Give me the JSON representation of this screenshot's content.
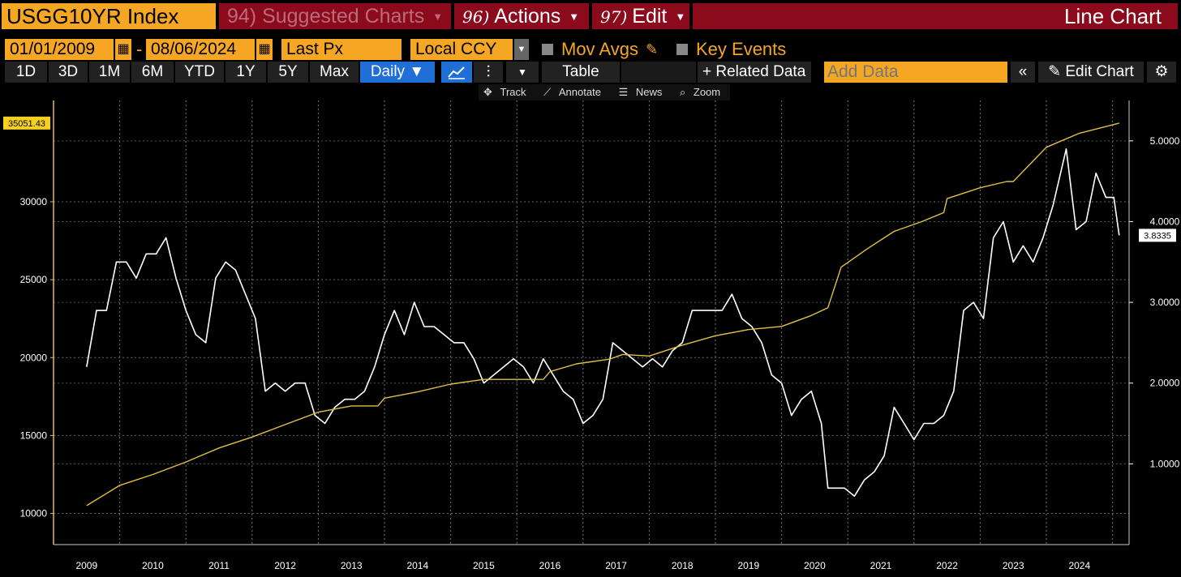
{
  "header": {
    "ticker": "USGG10YR Index",
    "suggested": "94) Suggested Charts",
    "actions_num": "96)",
    "actions": "Actions",
    "edit_num": "97)",
    "edit": "Edit",
    "title": "Line Chart"
  },
  "controls": {
    "start_date": "01/01/2009",
    "end_date": "08/06/2024",
    "date_sep": "-",
    "field": "Last Px",
    "currency": "Local CCY",
    "mov_avgs": "Mov Avgs",
    "key_events": "Key Events"
  },
  "toolbar": {
    "ranges": [
      "1D",
      "3D",
      "1M",
      "6M",
      "YTD",
      "1Y",
      "5Y",
      "Max"
    ],
    "period": "Daily",
    "period_caret": "▼",
    "table": "Table",
    "related": "+ Related Data",
    "add_data_placeholder": "Add Data",
    "edit_chart": "Edit Chart"
  },
  "chart_tools": {
    "track": "Track",
    "annotate": "Annotate",
    "news": "News",
    "zoom": "Zoom"
  },
  "colors": {
    "accent": "#f5a623",
    "header_red": "#8b0a1c",
    "selected_blue": "#1f6fd6",
    "series_white": "#ffffff",
    "series_yellow": "#e2c044"
  },
  "chart_data": {
    "type": "line",
    "x_ticks": [
      "2009",
      "2010",
      "2011",
      "2012",
      "2013",
      "2014",
      "2015",
      "2016",
      "2017",
      "2018",
      "2019",
      "2020",
      "2021",
      "2022",
      "2023",
      "2024"
    ],
    "left_axis": {
      "ticks": [
        "30000",
        "25000",
        "20000",
        "15000",
        "10000"
      ],
      "range": [
        8000,
        36500
      ]
    },
    "right_axis": {
      "ticks": [
        "5.0000",
        "4.0000",
        "3.0000",
        "2.0000",
        "1.0000"
      ],
      "range": [
        0.0,
        5.5
      ]
    },
    "grid": true,
    "series": [
      {
        "axis": "right",
        "color": "#ffffff",
        "last_value_label": "3.8335",
        "x": [
          2009.0,
          2009.15,
          2009.3,
          2009.45,
          2009.6,
          2009.75,
          2009.9,
          2010.05,
          2010.2,
          2010.35,
          2010.5,
          2010.65,
          2010.8,
          2010.95,
          2011.1,
          2011.25,
          2011.4,
          2011.55,
          2011.7,
          2011.85,
          2012.0,
          2012.15,
          2012.3,
          2012.45,
          2012.6,
          2012.75,
          2012.9,
          2013.05,
          2013.2,
          2013.35,
          2013.5,
          2013.65,
          2013.8,
          2013.95,
          2014.1,
          2014.25,
          2014.4,
          2014.55,
          2014.7,
          2014.85,
          2015.0,
          2015.15,
          2015.3,
          2015.45,
          2015.6,
          2015.75,
          2015.9,
          2016.05,
          2016.2,
          2016.35,
          2016.5,
          2016.65,
          2016.8,
          2016.95,
          2017.1,
          2017.25,
          2017.4,
          2017.55,
          2017.7,
          2017.85,
          2018.0,
          2018.15,
          2018.3,
          2018.45,
          2018.6,
          2018.75,
          2018.9,
          2019.05,
          2019.2,
          2019.35,
          2019.5,
          2019.65,
          2019.8,
          2019.95,
          2020.1,
          2020.2,
          2020.3,
          2020.45,
          2020.6,
          2020.75,
          2020.9,
          2021.05,
          2021.2,
          2021.35,
          2021.5,
          2021.65,
          2021.8,
          2021.95,
          2022.1,
          2022.25,
          2022.4,
          2022.55,
          2022.7,
          2022.85,
          2023.0,
          2023.15,
          2023.3,
          2023.45,
          2023.6,
          2023.8,
          2023.95,
          2024.1,
          2024.25,
          2024.4,
          2024.52,
          2024.6
        ],
        "y": [
          2.2,
          2.9,
          2.9,
          3.5,
          3.5,
          3.3,
          3.6,
          3.6,
          3.8,
          3.3,
          2.9,
          2.6,
          2.5,
          3.3,
          3.5,
          3.4,
          3.1,
          2.8,
          1.9,
          2.0,
          1.9,
          2.0,
          2.0,
          1.6,
          1.5,
          1.7,
          1.8,
          1.8,
          1.9,
          2.2,
          2.6,
          2.9,
          2.6,
          3.0,
          2.7,
          2.7,
          2.6,
          2.5,
          2.5,
          2.3,
          2.0,
          2.1,
          2.2,
          2.3,
          2.2,
          2.0,
          2.3,
          2.1,
          1.9,
          1.8,
          1.5,
          1.6,
          1.8,
          2.5,
          2.4,
          2.3,
          2.2,
          2.3,
          2.2,
          2.4,
          2.5,
          2.9,
          2.9,
          2.9,
          2.9,
          3.1,
          2.8,
          2.7,
          2.5,
          2.1,
          2.0,
          1.6,
          1.8,
          1.9,
          1.5,
          0.7,
          0.7,
          0.7,
          0.6,
          0.8,
          0.9,
          1.1,
          1.7,
          1.5,
          1.3,
          1.5,
          1.5,
          1.6,
          1.9,
          2.9,
          3.0,
          2.8,
          3.8,
          4.0,
          3.5,
          3.7,
          3.5,
          3.8,
          4.2,
          4.9,
          3.9,
          4.0,
          4.6,
          4.3,
          4.3,
          3.83
        ]
      },
      {
        "axis": "left",
        "color": "#e2c044",
        "last_value_label": "35051.43",
        "x": [
          2009.0,
          2009.5,
          2010.0,
          2010.5,
          2011.0,
          2011.5,
          2012.0,
          2012.5,
          2013.0,
          2013.4,
          2013.5,
          2014.0,
          2014.5,
          2015.0,
          2015.5,
          2015.9,
          2016.0,
          2016.4,
          2016.9,
          2017.1,
          2017.5,
          2018.0,
          2018.5,
          2019.0,
          2019.5,
          2019.95,
          2020.2,
          2020.4,
          2020.8,
          2021.2,
          2021.6,
          2021.95,
          2022.0,
          2022.5,
          2022.9,
          2023.0,
          2023.5,
          2024.0,
          2024.6
        ],
        "y": [
          10500,
          11800,
          12500,
          13300,
          14200,
          14900,
          15700,
          16500,
          16900,
          16900,
          17400,
          17800,
          18300,
          18600,
          18600,
          18600,
          19100,
          19600,
          19900,
          20200,
          20100,
          20800,
          21400,
          21800,
          22000,
          22700,
          23200,
          25800,
          27000,
          28100,
          28700,
          29300,
          30200,
          30900,
          31300,
          31300,
          33500,
          34400,
          35051
        ]
      }
    ]
  }
}
